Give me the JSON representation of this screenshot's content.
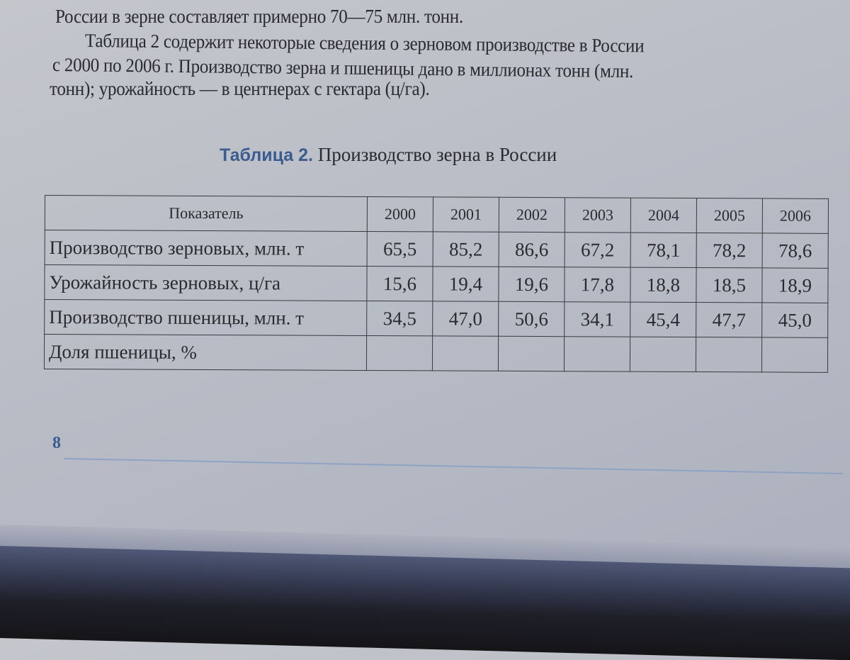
{
  "text": {
    "line1": "России в зерне составляет примерно 70—75 млн. тонн.",
    "line2": "Таблица 2 содержит некоторые сведения о зерновом производстве в России",
    "line3": "с 2000 по 2006 г. Производство зерна и пшеницы дано в миллионах тонн (млн.",
    "line4": "тонн); урожайность — в центнерах с гектара (ц/га)."
  },
  "caption": {
    "number": "Таблица 2.",
    "title": "Производство зерна в России"
  },
  "table": {
    "header": [
      "Показатель",
      "2000",
      "2001",
      "2002",
      "2003",
      "2004",
      "2005",
      "2006"
    ],
    "rows": [
      {
        "label": "Производство зерновых, млн. т",
        "values": [
          "65,5",
          "85,2",
          "86,6",
          "67,2",
          "78,1",
          "78,2",
          "78,6"
        ]
      },
      {
        "label": "Урожайность зерновых, ц/га",
        "values": [
          "15,6",
          "19,4",
          "19,6",
          "17,8",
          "18,8",
          "18,5",
          "18,9"
        ]
      },
      {
        "label": "Производство пшеницы, млн. т",
        "values": [
          "34,5",
          "47,0",
          "50,6",
          "34,1",
          "45,4",
          "47,7",
          "45,0"
        ]
      },
      {
        "label": "Доля пшеницы, %",
        "values": [
          "",
          "",
          "",
          "",
          "",
          "",
          ""
        ]
      }
    ]
  },
  "page_number": "8",
  "colors": {
    "accent": "#3b5c8e",
    "paper": "#bcbfc8"
  }
}
